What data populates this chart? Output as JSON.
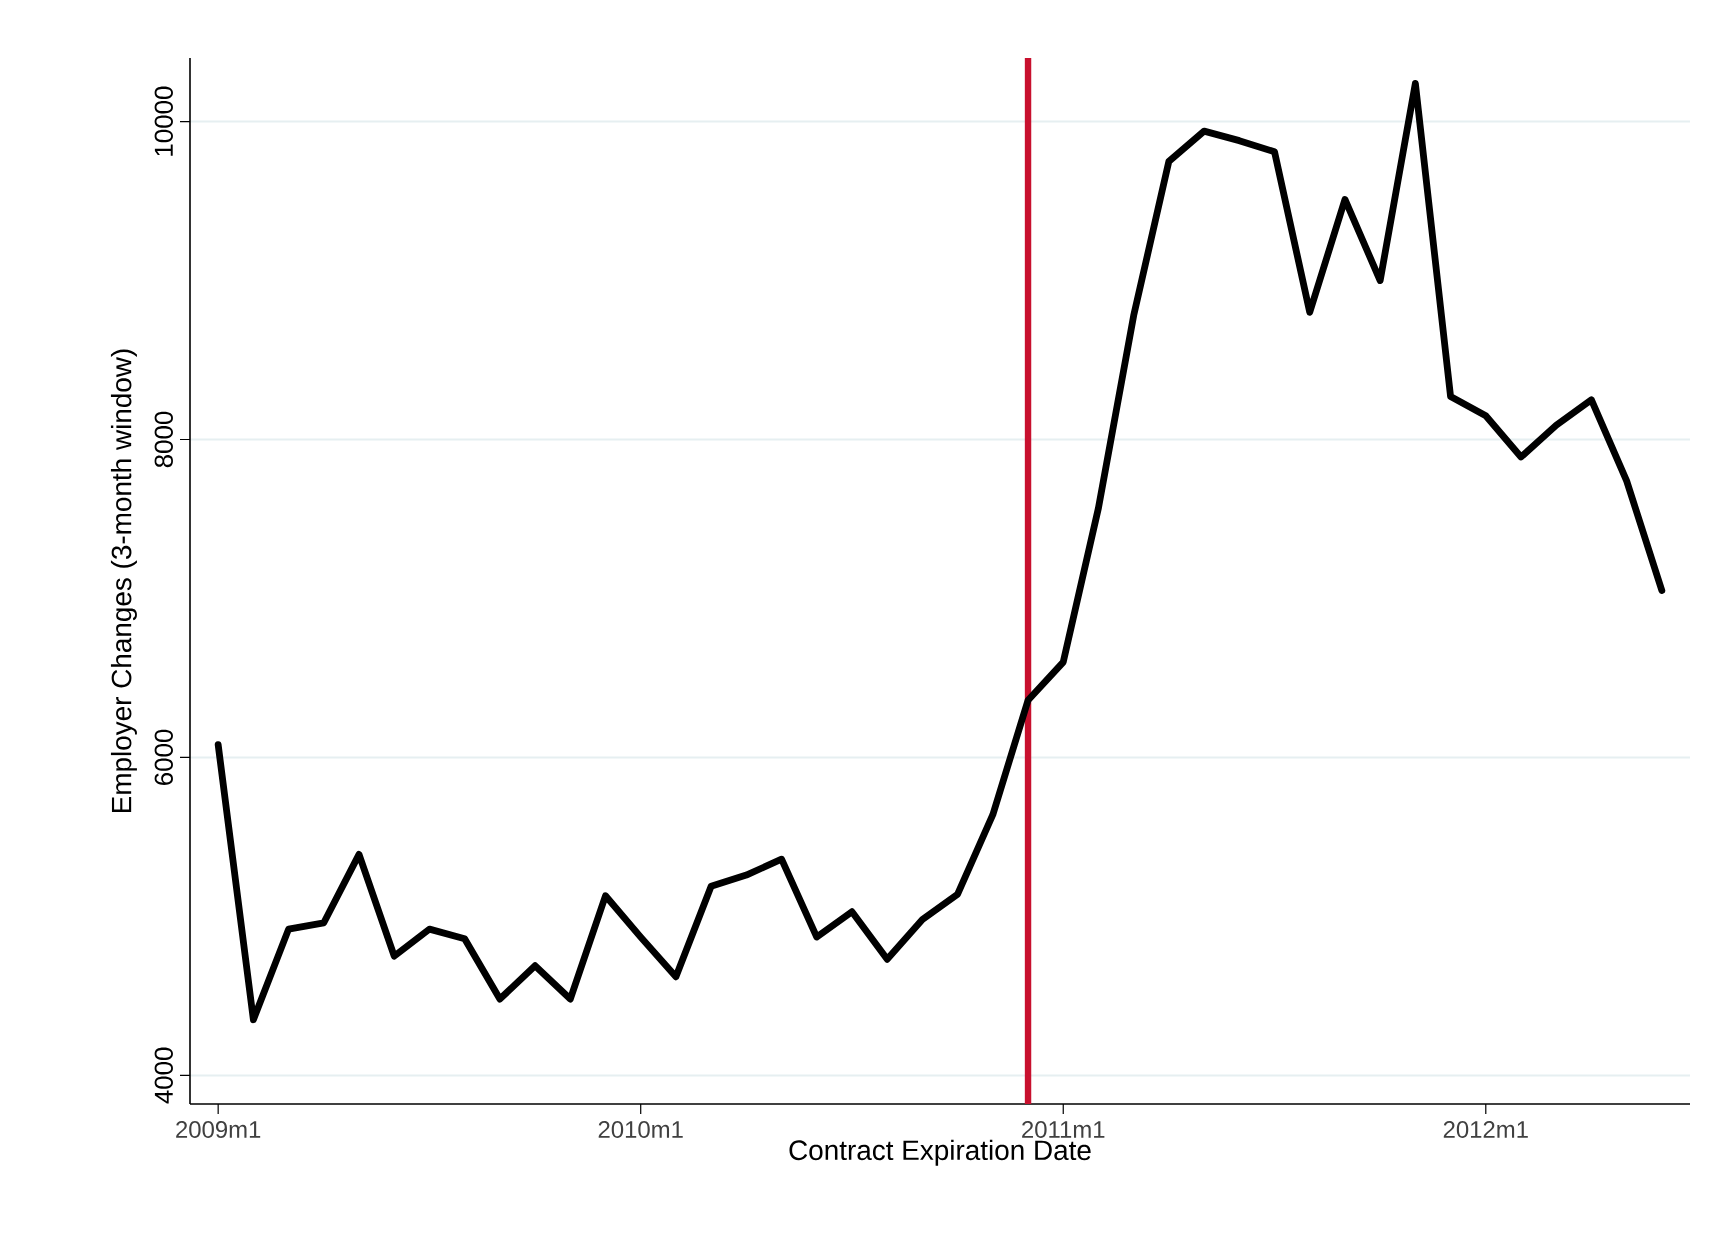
{
  "chart_data": {
    "type": "line",
    "xlabel": "Contract Expiration Date",
    "ylabel": "Employer Changes (3-month window)",
    "x": [
      "2009-01",
      "2009-02",
      "2009-03",
      "2009-04",
      "2009-05",
      "2009-06",
      "2009-07",
      "2009-08",
      "2009-09",
      "2009-10",
      "2009-11",
      "2009-12",
      "2010-01",
      "2010-02",
      "2010-03",
      "2010-04",
      "2010-05",
      "2010-06",
      "2010-07",
      "2010-08",
      "2010-09",
      "2010-10",
      "2010-11",
      "2010-12",
      "2011-01",
      "2011-02",
      "2011-03",
      "2011-04",
      "2011-05",
      "2011-06",
      "2011-07",
      "2011-08",
      "2011-09",
      "2011-10",
      "2011-11",
      "2011-12",
      "2012-01",
      "2012-02",
      "2012-03",
      "2012-04",
      "2012-05",
      "2012-06"
    ],
    "series": [
      {
        "color": "#000000",
        "values": [
          6080,
          4350,
          4920,
          4960,
          5390,
          4750,
          4920,
          4860,
          4480,
          4690,
          4480,
          5130,
          4870,
          4620,
          5190,
          5260,
          5360,
          4870,
          5030,
          4730,
          4980,
          5140,
          5640,
          6360,
          6600,
          7570,
          8780,
          9750,
          9940,
          9880,
          9810,
          8800,
          9510,
          9000,
          10240,
          8270,
          8150,
          7890,
          8090,
          8250,
          7740,
          7050
        ]
      }
    ],
    "xlim": [
      "2008-12-07",
      "2012-06-25"
    ],
    "ylim": [
      3820,
      10400
    ],
    "xticks": [
      {
        "value": "2009-01",
        "label": "2009m1"
      },
      {
        "value": "2010-01",
        "label": "2010m1"
      },
      {
        "value": "2011-01",
        "label": "2011m1"
      },
      {
        "value": "2012-01",
        "label": "2012m1"
      }
    ],
    "yticks": [
      4000,
      6000,
      8000,
      10000
    ],
    "grid": "y",
    "marker": "none",
    "line_style": "solid",
    "ref_lines": [
      {
        "axis": "x",
        "value": "2010-12",
        "color": "#c8102e",
        "line_style": "solid"
      }
    ]
  }
}
